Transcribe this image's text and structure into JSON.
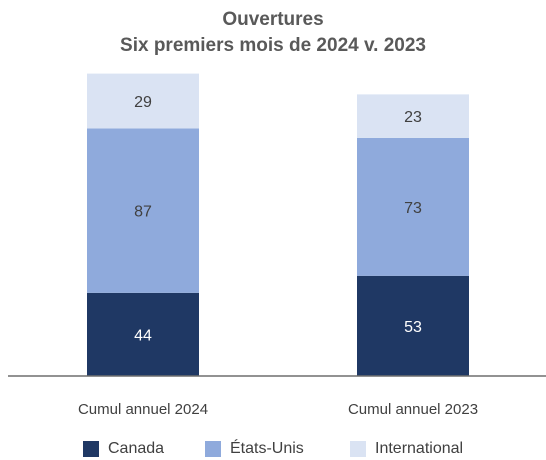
{
  "chart_data": {
    "type": "bar",
    "stacked": true,
    "title": "Ouvertures",
    "subtitle": "Six premiers mois de 2024 v. 2023",
    "categories": [
      "Cumul annuel 2024",
      "Cumul annuel 2023"
    ],
    "series": [
      {
        "name": "Canada",
        "values": [
          44,
          53
        ],
        "color": "#1f3864"
      },
      {
        "name": "États-Unis",
        "values": [
          87,
          73
        ],
        "color": "#8faadc"
      },
      {
        "name": "International",
        "values": [
          29,
          23
        ],
        "color": "#dae3f3"
      }
    ],
    "label_colors": [
      "#ffffff",
      "#404040",
      "#404040"
    ],
    "grid": false,
    "legend_position": "bottom",
    "ylim": [
      0,
      160
    ]
  }
}
